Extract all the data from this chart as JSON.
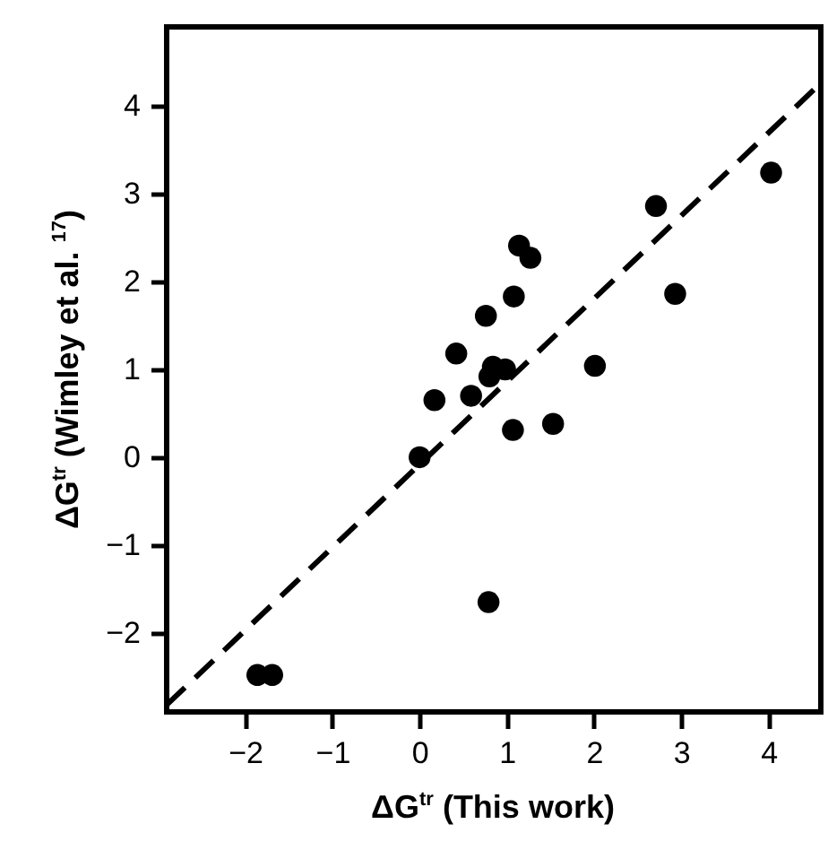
{
  "chart_data": {
    "type": "scatter",
    "xlabel": "ΔG$^{tr}$ (This work)",
    "ylabel": "ΔG$^{tr}$ (Wimley et al. $^{17}$)",
    "xlim": [
      -2.9,
      4.6
    ],
    "ylim": [
      -2.9,
      4.9
    ],
    "xticks": [
      -2,
      -1,
      0,
      1,
      2,
      3,
      4
    ],
    "yticks": [
      -2,
      -1,
      0,
      1,
      2,
      3,
      4
    ],
    "grid": false,
    "marker": "circle",
    "series": [
      {
        "color": "#000000",
        "x": [
          -1.86,
          -1.69,
          0,
          0.17,
          0.42,
          0.59,
          0.76,
          0.8,
          0.84,
          0.98,
          1.07,
          1.08,
          1.14,
          1.27,
          1.53,
          2.01,
          2.71,
          2.93,
          4.03,
          0.79
        ],
        "values": [
          -2.48,
          -2.48,
          0,
          0.65,
          1.18,
          0.7,
          1.61,
          0.92,
          1.03,
          1.0,
          0.31,
          1.83,
          2.41,
          2.27,
          0.38,
          1.04,
          2.86,
          1.86,
          3.24,
          -1.65
        ]
      },
      {
        "type": "line",
        "color": "#000000",
        "marker": "none",
        "line_style": "dashed",
        "x": [
          -2.9,
          4.6
        ],
        "values": [
          -2.82,
          4.26
        ]
      }
    ]
  }
}
